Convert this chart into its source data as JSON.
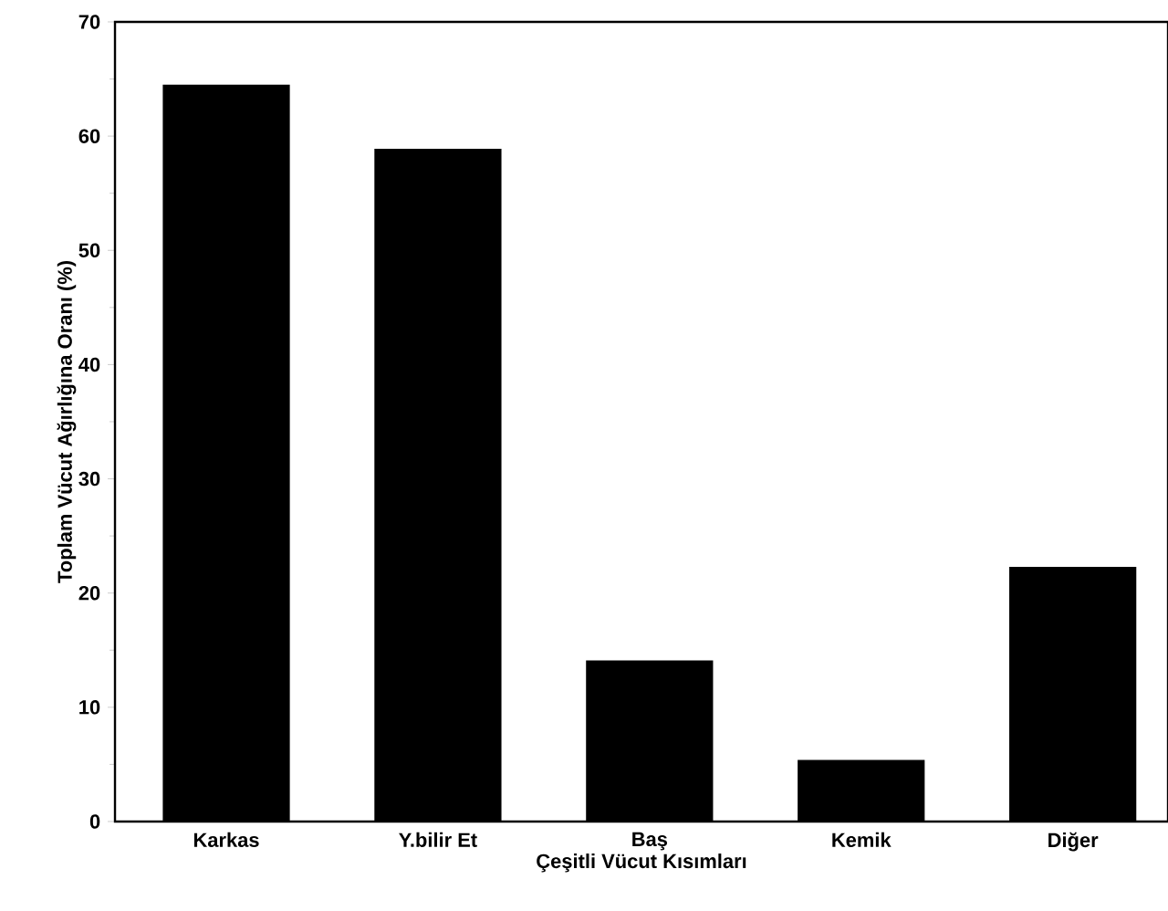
{
  "chart_data": {
    "type": "bar",
    "xlabel": "Çeşitli Vücut Kısımları",
    "ylabel": "Toplam Vücut Ağırlığına Oranı (%)",
    "categories": [
      "Karkas",
      "Y.bilir Et",
      "Baş",
      "Kemik",
      "Diğer"
    ],
    "values": [
      64.4,
      58.8,
      14.0,
      5.3,
      22.2
    ],
    "color": "#000000",
    "ylim": [
      0,
      70
    ],
    "yticks": [
      0,
      10,
      20,
      30,
      40,
      50,
      60,
      70
    ]
  }
}
